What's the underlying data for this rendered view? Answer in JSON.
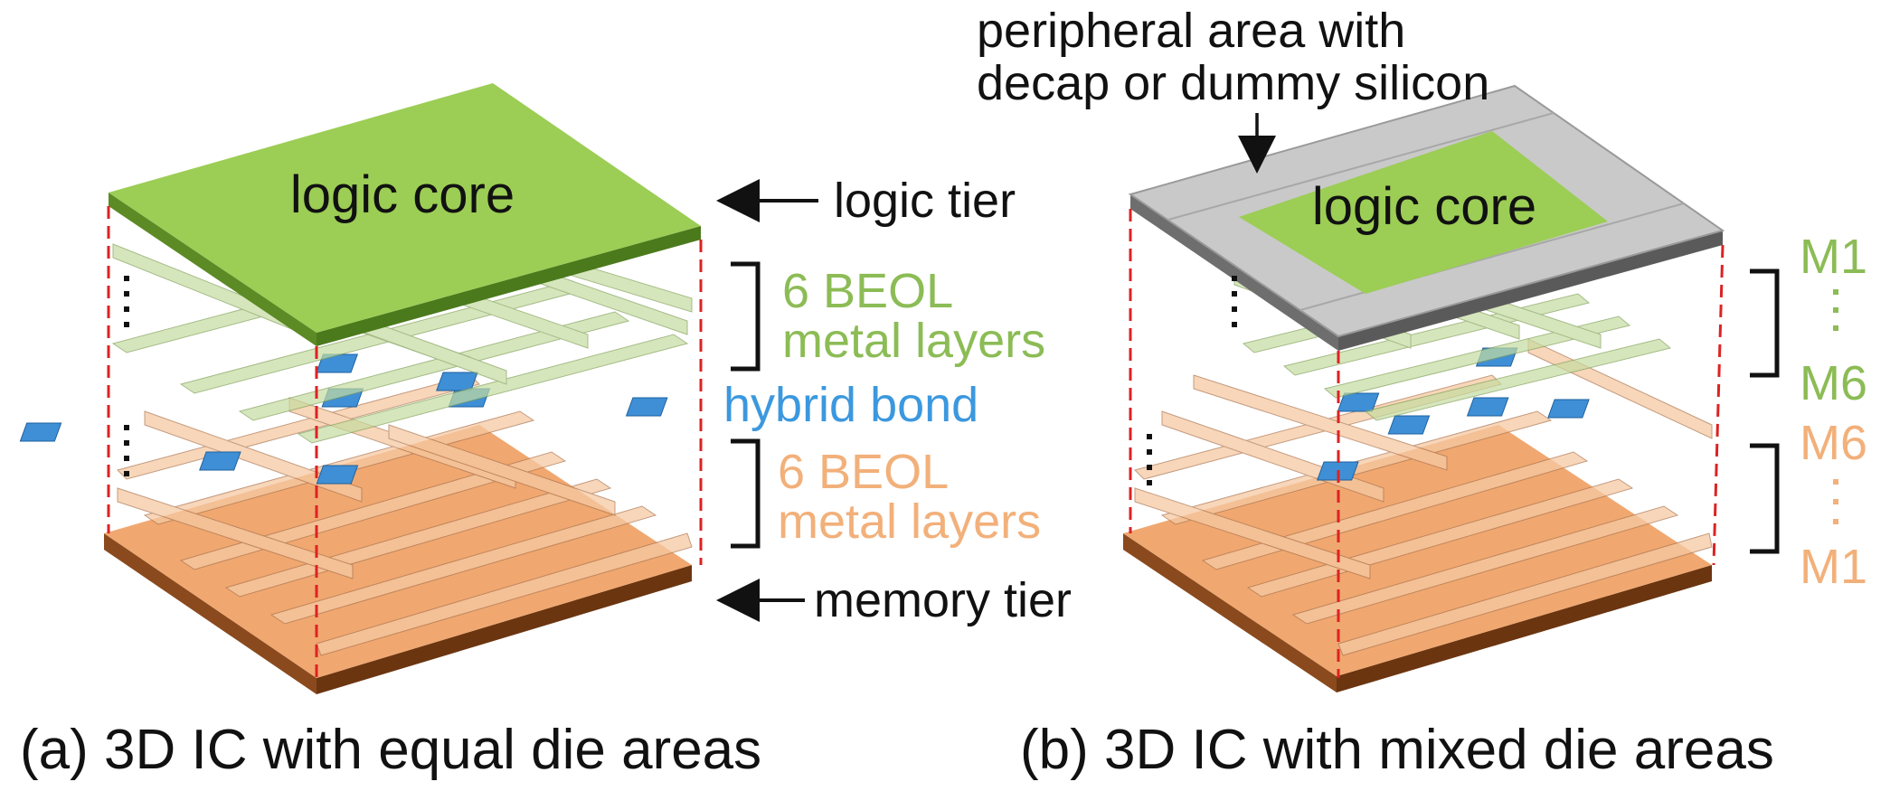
{
  "panel_a": {
    "core_label": "logic core",
    "logic_tier": "logic tier",
    "memory_tier": "memory tier",
    "top_beol_line1": "6 BEOL",
    "top_beol_line2": "metal layers",
    "hybrid_bond": "hybrid bond",
    "bottom_beol_line1": "6 BEOL",
    "bottom_beol_line2": "metal layers",
    "caption": "(a) 3D IC with equal die areas"
  },
  "panel_b": {
    "peripheral_line1": "peripheral area with",
    "peripheral_line2": "decap or dummy silicon",
    "core_label": "logic core",
    "top_m1": "M1",
    "top_m6": "M6",
    "bottom_m6": "M6",
    "bottom_m1": "M1",
    "caption": "(b) 3D IC with mixed die areas"
  },
  "colors": {
    "logic": "#9ccd55",
    "memory": "#f0a870",
    "bond": "#3f8fd6",
    "green_text": "#8cbc55",
    "orange_text": "#f2b07a",
    "blue_text": "#3c98de",
    "guide": "#dd2222",
    "periphery": "#c9c9c9"
  }
}
